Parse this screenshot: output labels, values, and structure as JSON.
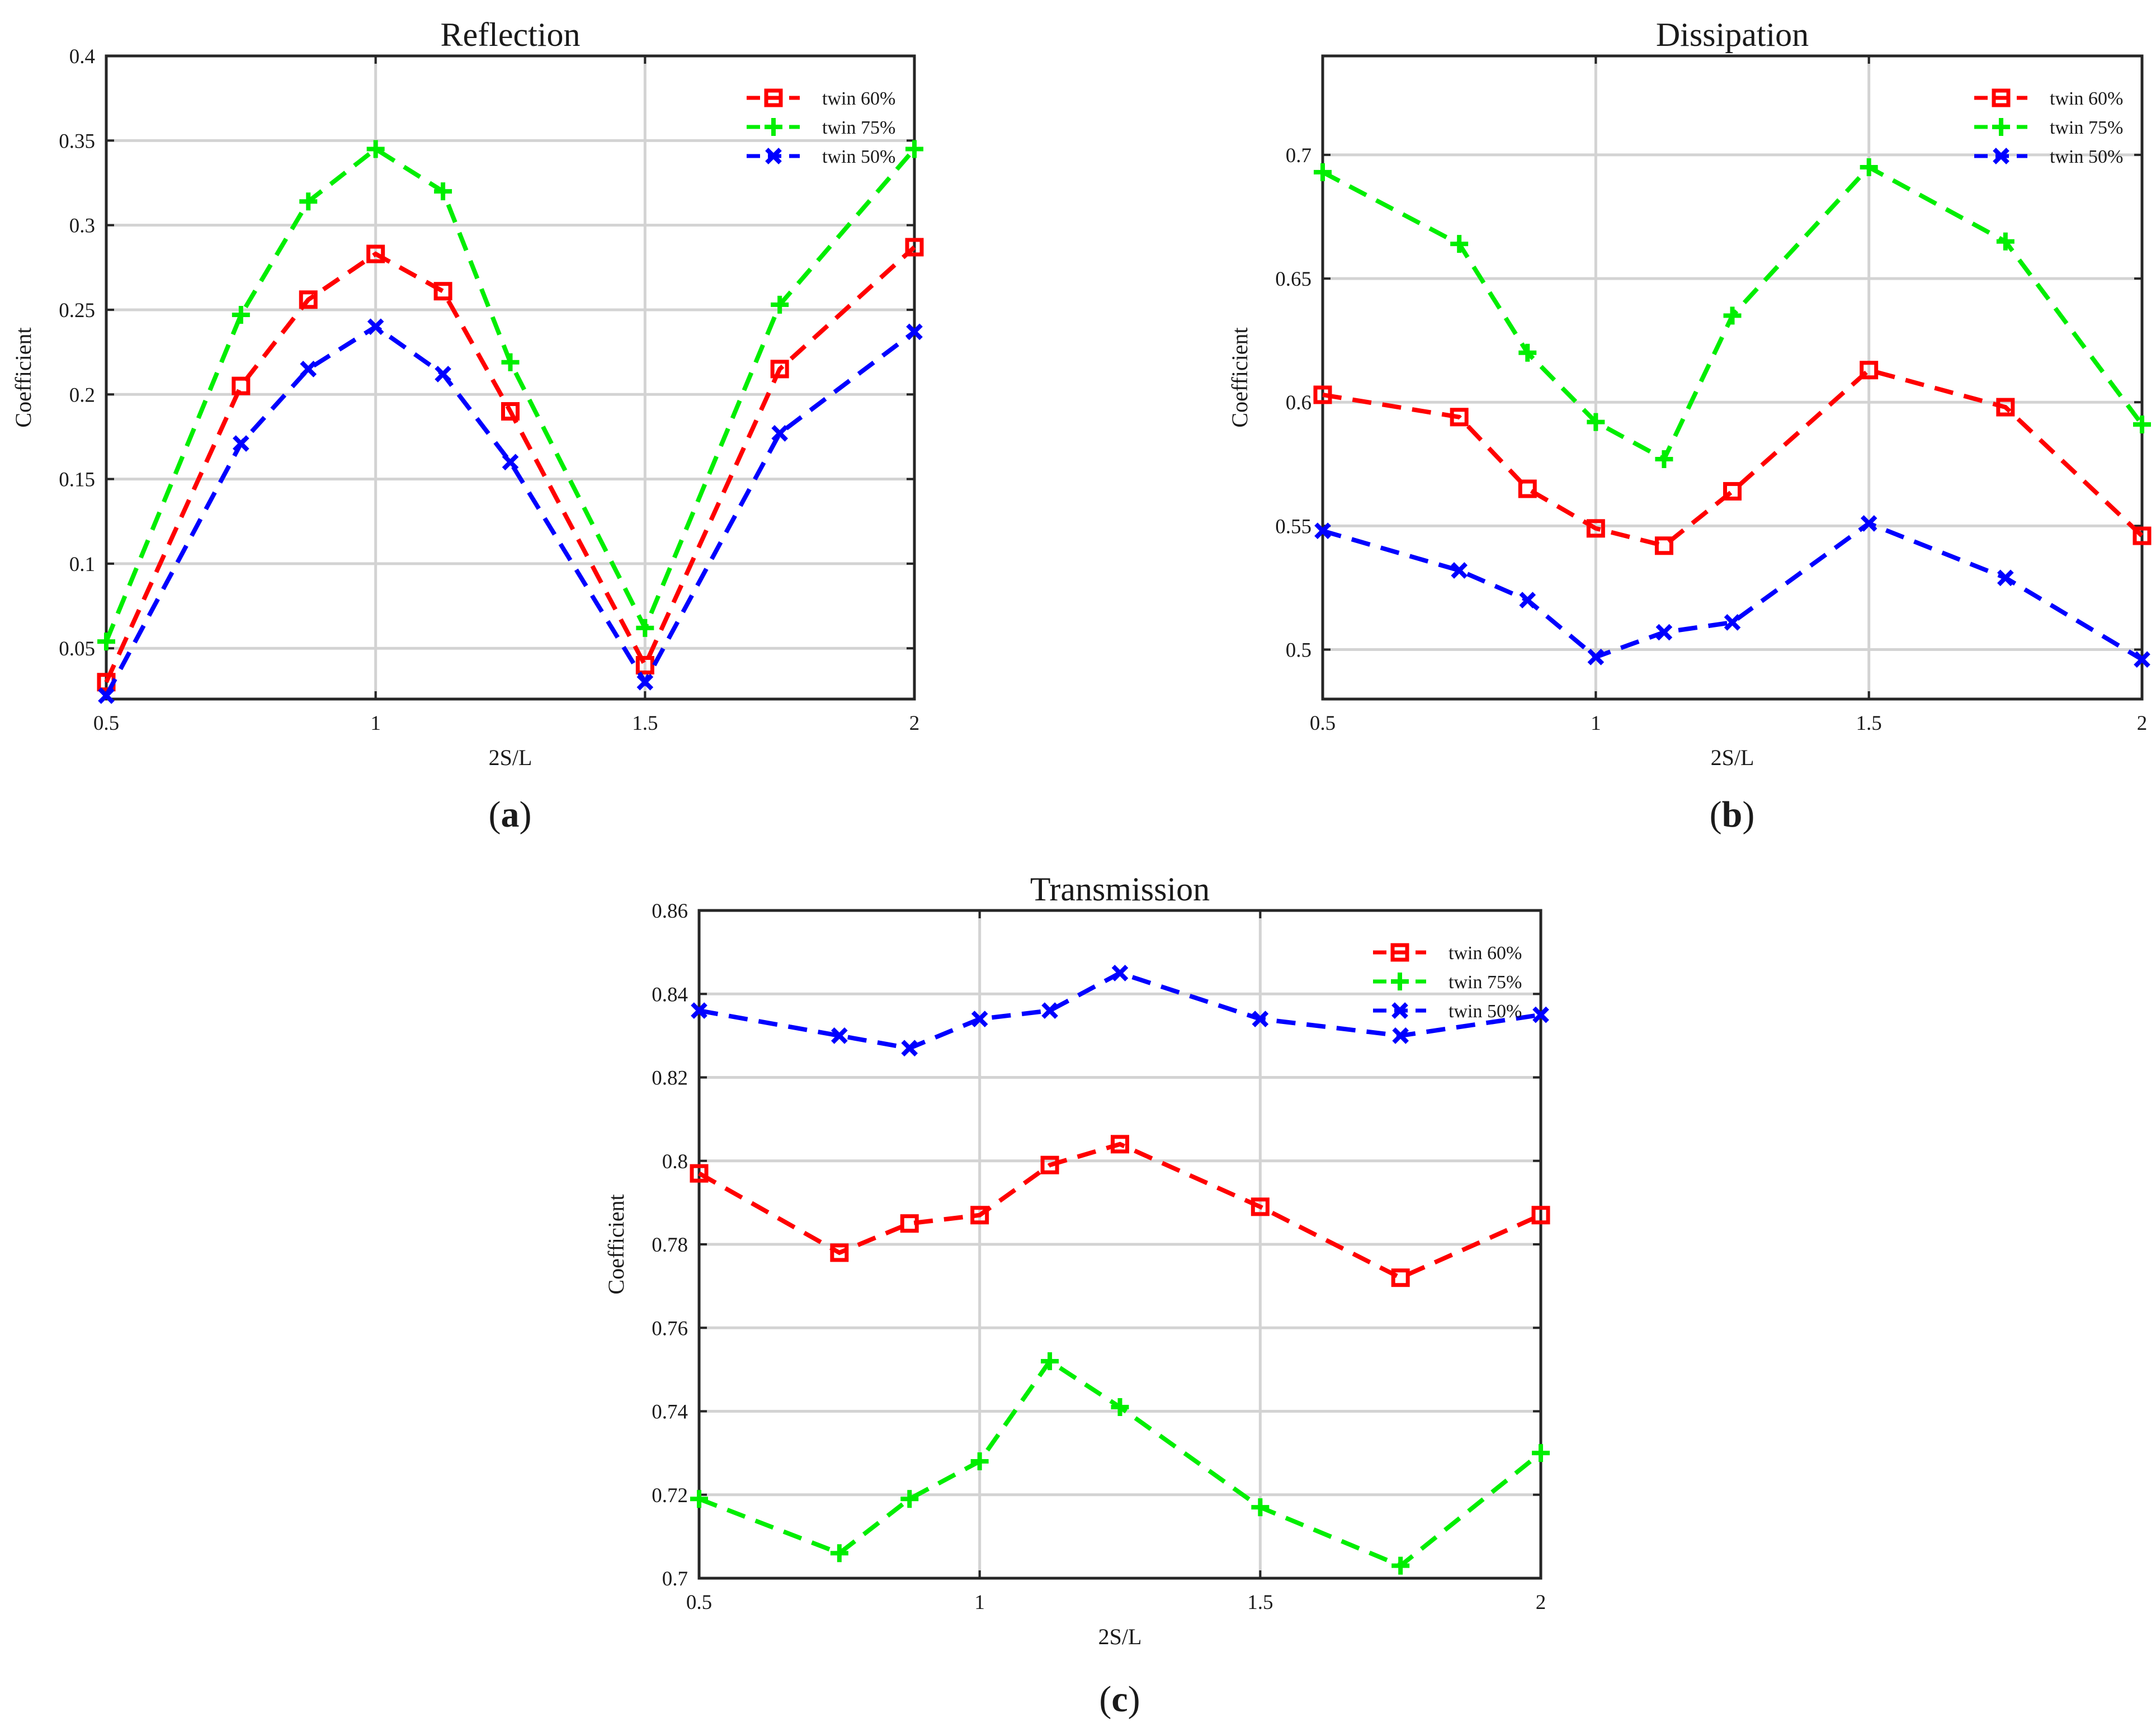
{
  "chart_data": [
    {
      "type": "line",
      "title": "Reflection",
      "xlabel": "2S/L",
      "ylabel": "Coefficient",
      "xlim": [
        0.5,
        2
      ],
      "ylim": [
        0.02,
        0.4
      ],
      "xticks": [
        0.5,
        1,
        1.5,
        2
      ],
      "xtick_labels": [
        "0.5",
        "1",
        "1.5",
        "2"
      ],
      "yticks": [
        0.05,
        0.1,
        0.15,
        0.2,
        0.25,
        0.3,
        0.35,
        0.4
      ],
      "ytick_labels": [
        "0.05",
        "0.1",
        "0.15",
        "0.2",
        "0.25",
        "0.3",
        "0.35",
        "0.4"
      ],
      "grid": true,
      "legend_position": "top-right",
      "caption_letter": "a",
      "x": [
        0.5,
        0.75,
        0.875,
        1.0,
        1.125,
        1.25,
        1.5,
        1.75,
        2.0
      ],
      "series": [
        {
          "name": "twin 60%",
          "color": "#ff0000",
          "marker": "square",
          "values": [
            0.03,
            0.205,
            0.256,
            0.283,
            0.261,
            0.19,
            0.04,
            0.215,
            0.287
          ]
        },
        {
          "name": "twin 75%",
          "color": "#00ee00",
          "marker": "plus",
          "values": [
            0.054,
            0.247,
            0.314,
            0.345,
            0.32,
            0.219,
            0.062,
            0.253,
            0.345
          ]
        },
        {
          "name": "twin 50%",
          "color": "#0000ff",
          "marker": "x",
          "values": [
            0.022,
            0.171,
            0.215,
            0.24,
            0.212,
            0.16,
            0.03,
            0.177,
            0.237
          ]
        }
      ]
    },
    {
      "type": "line",
      "title": "Dissipation",
      "xlabel": "2S/L",
      "ylabel": "Coefficient",
      "xlim": [
        0.5,
        2
      ],
      "ylim": [
        0.48,
        0.74
      ],
      "xticks": [
        0.5,
        1,
        1.5,
        2
      ],
      "xtick_labels": [
        "0.5",
        "1",
        "1.5",
        "2"
      ],
      "yticks": [
        0.5,
        0.55,
        0.6,
        0.65,
        0.7
      ],
      "ytick_labels": [
        "0.5",
        "0.55",
        "0.6",
        "0.65",
        "0.7"
      ],
      "grid": true,
      "legend_position": "top-right",
      "caption_letter": "b",
      "x": [
        0.5,
        0.75,
        0.875,
        1.0,
        1.125,
        1.25,
        1.5,
        1.75,
        2.0
      ],
      "series": [
        {
          "name": "twin 60%",
          "color": "#ff0000",
          "marker": "square",
          "values": [
            0.603,
            0.594,
            0.565,
            0.549,
            0.542,
            0.564,
            0.613,
            0.598,
            0.546
          ]
        },
        {
          "name": "twin 75%",
          "color": "#00ee00",
          "marker": "plus",
          "values": [
            0.693,
            0.664,
            0.62,
            0.592,
            0.577,
            0.635,
            0.695,
            0.665,
            0.591
          ]
        },
        {
          "name": "twin 50%",
          "color": "#0000ff",
          "marker": "x",
          "values": [
            0.548,
            0.532,
            0.52,
            0.497,
            0.507,
            0.511,
            0.551,
            0.529,
            0.496
          ]
        }
      ]
    },
    {
      "type": "line",
      "title": "Transmission",
      "xlabel": "2S/L",
      "ylabel": "Coefficient",
      "xlim": [
        0.5,
        2
      ],
      "ylim": [
        0.7,
        0.86
      ],
      "xticks": [
        0.5,
        1,
        1.5,
        2
      ],
      "xtick_labels": [
        "0.5",
        "1",
        "1.5",
        "2"
      ],
      "yticks": [
        0.7,
        0.72,
        0.74,
        0.76,
        0.78,
        0.8,
        0.82,
        0.84,
        0.86
      ],
      "ytick_labels": [
        "0.7",
        "0.72",
        "0.74",
        "0.76",
        "0.78",
        "0.8",
        "0.82",
        "0.84",
        "0.86"
      ],
      "grid": true,
      "legend_position": "top-right",
      "caption_letter": "c",
      "x": [
        0.5,
        0.75,
        0.875,
        1.0,
        1.125,
        1.25,
        1.5,
        1.75,
        2.0
      ],
      "series": [
        {
          "name": "twin 60%",
          "color": "#ff0000",
          "marker": "square",
          "values": [
            0.797,
            0.778,
            0.785,
            0.787,
            0.799,
            0.804,
            0.789,
            0.772,
            0.787
          ]
        },
        {
          "name": "twin 75%",
          "color": "#00ee00",
          "marker": "plus",
          "values": [
            0.719,
            0.706,
            0.719,
            0.728,
            0.752,
            0.741,
            0.717,
            0.703,
            0.73
          ]
        },
        {
          "name": "twin 50%",
          "color": "#0000ff",
          "marker": "x",
          "values": [
            0.836,
            0.83,
            0.827,
            0.834,
            0.836,
            0.845,
            0.834,
            0.83,
            0.835
          ]
        }
      ]
    }
  ]
}
